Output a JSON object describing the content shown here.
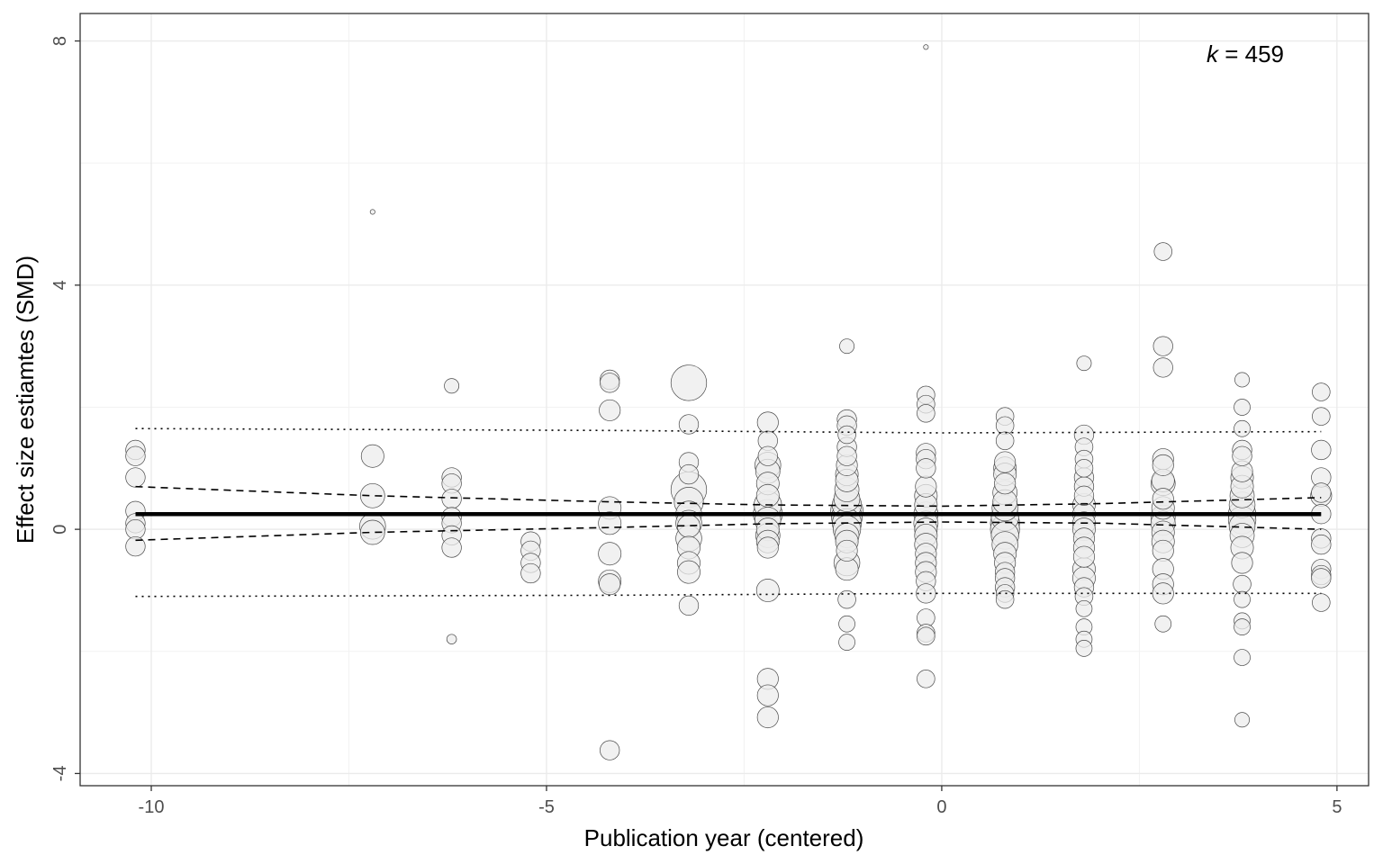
{
  "chart_data": {
    "type": "scatter",
    "xlabel": "Publication year (centered)",
    "ylabel": "Effect size estiamtes (SMD)",
    "xlim": [
      -10.9,
      5.4
    ],
    "ylim": [
      -4.2,
      8.45
    ],
    "x_ticks": [
      -10,
      -5,
      0,
      5
    ],
    "y_ticks": [
      -4,
      0,
      4,
      8
    ],
    "x_tick_labels": [
      "-10",
      "-5",
      "0",
      "5"
    ],
    "y_tick_labels": [
      "-4",
      "0",
      "4",
      "8"
    ],
    "grid": true,
    "annotation": {
      "var": "k",
      "op": " = ",
      "value": "459",
      "position": "top-right"
    },
    "fit_line": {
      "x": [
        -10.2,
        4.8
      ],
      "y": [
        0.25,
        0.25
      ]
    },
    "ci_upper": {
      "x": [
        -10.2,
        -7.2,
        -4.2,
        -2.2,
        0,
        2,
        4.8
      ],
      "y": [
        0.7,
        0.55,
        0.45,
        0.4,
        0.38,
        0.42,
        0.52
      ]
    },
    "ci_lower": {
      "x": [
        -10.2,
        -7.2,
        -4.2,
        -2.2,
        0,
        2,
        4.8
      ],
      "y": [
        -0.18,
        -0.05,
        0.03,
        0.09,
        0.12,
        0.1,
        0.0
      ]
    },
    "pi_upper": {
      "x": [
        -10.2,
        -4.2,
        0,
        4.8
      ],
      "y": [
        1.65,
        1.62,
        1.58,
        1.6
      ]
    },
    "pi_lower": {
      "x": [
        -10.2,
        -4.2,
        0,
        4.8
      ],
      "y": [
        -1.1,
        -1.08,
        -1.05,
        -1.05
      ]
    },
    "points": [
      {
        "x": -10.2,
        "y": 1.3,
        "w": 1.2
      },
      {
        "x": -10.2,
        "y": 1.2,
        "w": 1.2
      },
      {
        "x": -10.2,
        "y": 0.85,
        "w": 1.2
      },
      {
        "x": -10.2,
        "y": 0.3,
        "w": 1.2
      },
      {
        "x": -10.2,
        "y": 0.1,
        "w": 1.2
      },
      {
        "x": -10.2,
        "y": 0.0,
        "w": 1.2
      },
      {
        "x": -10.2,
        "y": -0.28,
        "w": 1.2
      },
      {
        "x": -7.2,
        "y": 5.2,
        "w": 0.3
      },
      {
        "x": -7.2,
        "y": 1.2,
        "w": 1.4
      },
      {
        "x": -7.2,
        "y": 0.55,
        "w": 1.5
      },
      {
        "x": -7.2,
        "y": 0.05,
        "w": 1.6
      },
      {
        "x": -7.2,
        "y": -0.05,
        "w": 1.5
      },
      {
        "x": -6.2,
        "y": 2.35,
        "w": 0.9
      },
      {
        "x": -6.2,
        "y": 0.85,
        "w": 1.2
      },
      {
        "x": -6.2,
        "y": 0.75,
        "w": 1.2
      },
      {
        "x": -6.2,
        "y": 0.5,
        "w": 1.2
      },
      {
        "x": -6.2,
        "y": 0.2,
        "w": 1.2
      },
      {
        "x": -6.2,
        "y": 0.1,
        "w": 1.2
      },
      {
        "x": -6.2,
        "y": -0.1,
        "w": 1.2
      },
      {
        "x": -6.2,
        "y": -0.3,
        "w": 1.2
      },
      {
        "x": -6.2,
        "y": -1.8,
        "w": 0.6
      },
      {
        "x": -5.2,
        "y": -0.2,
        "w": 1.2
      },
      {
        "x": -5.2,
        "y": -0.35,
        "w": 1.2
      },
      {
        "x": -5.2,
        "y": -0.55,
        "w": 1.2
      },
      {
        "x": -5.2,
        "y": -0.72,
        "w": 1.2
      },
      {
        "x": -4.2,
        "y": 2.45,
        "w": 1.2
      },
      {
        "x": -4.2,
        "y": 2.4,
        "w": 1.2
      },
      {
        "x": -4.2,
        "y": 1.95,
        "w": 1.3
      },
      {
        "x": -4.2,
        "y": 0.35,
        "w": 1.4
      },
      {
        "x": -4.2,
        "y": 0.1,
        "w": 1.4
      },
      {
        "x": -4.2,
        "y": -0.4,
        "w": 1.4
      },
      {
        "x": -4.2,
        "y": -0.85,
        "w": 1.4
      },
      {
        "x": -4.2,
        "y": -0.9,
        "w": 1.3
      },
      {
        "x": -4.2,
        "y": -3.62,
        "w": 1.2
      },
      {
        "x": -3.2,
        "y": 2.4,
        "w": 2.2
      },
      {
        "x": -3.2,
        "y": 1.72,
        "w": 1.2
      },
      {
        "x": -3.2,
        "y": 1.1,
        "w": 1.2
      },
      {
        "x": -3.2,
        "y": 0.9,
        "w": 1.2
      },
      {
        "x": -3.2,
        "y": 0.65,
        "w": 2.2
      },
      {
        "x": -3.2,
        "y": 0.45,
        "w": 1.8
      },
      {
        "x": -3.2,
        "y": 0.25,
        "w": 1.6
      },
      {
        "x": -3.2,
        "y": 0.1,
        "w": 1.6
      },
      {
        "x": -3.2,
        "y": 0.05,
        "w": 1.4
      },
      {
        "x": -3.2,
        "y": -0.15,
        "w": 1.6
      },
      {
        "x": -3.2,
        "y": -0.3,
        "w": 1.4
      },
      {
        "x": -3.2,
        "y": -0.55,
        "w": 1.4
      },
      {
        "x": -3.2,
        "y": -0.7,
        "w": 1.4
      },
      {
        "x": -3.2,
        "y": -1.25,
        "w": 1.2
      },
      {
        "x": -2.2,
        "y": 1.75,
        "w": 1.3
      },
      {
        "x": -2.2,
        "y": 1.45,
        "w": 1.2
      },
      {
        "x": -2.2,
        "y": 1.2,
        "w": 1.2
      },
      {
        "x": -2.2,
        "y": 1.05,
        "w": 1.6
      },
      {
        "x": -2.2,
        "y": 0.95,
        "w": 1.5
      },
      {
        "x": -2.2,
        "y": 0.75,
        "w": 1.4
      },
      {
        "x": -2.2,
        "y": 0.55,
        "w": 1.4
      },
      {
        "x": -2.2,
        "y": 0.4,
        "w": 1.7
      },
      {
        "x": -2.2,
        "y": 0.25,
        "w": 1.8
      },
      {
        "x": -2.2,
        "y": 0.15,
        "w": 1.6
      },
      {
        "x": -2.2,
        "y": 0.0,
        "w": 1.4
      },
      {
        "x": -2.2,
        "y": -0.1,
        "w": 1.5
      },
      {
        "x": -2.2,
        "y": -0.2,
        "w": 1.4
      },
      {
        "x": -2.2,
        "y": -0.3,
        "w": 1.3
      },
      {
        "x": -2.2,
        "y": -1.0,
        "w": 1.4
      },
      {
        "x": -2.2,
        "y": -2.45,
        "w": 1.3
      },
      {
        "x": -2.2,
        "y": -2.72,
        "w": 1.3
      },
      {
        "x": -2.2,
        "y": -3.08,
        "w": 1.3
      },
      {
        "x": -1.2,
        "y": 3.0,
        "w": 0.9
      },
      {
        "x": -1.2,
        "y": 1.8,
        "w": 1.2
      },
      {
        "x": -1.2,
        "y": 1.7,
        "w": 1.2
      },
      {
        "x": -1.2,
        "y": 1.55,
        "w": 1.1
      },
      {
        "x": -1.2,
        "y": 1.35,
        "w": 1.2
      },
      {
        "x": -1.2,
        "y": 1.2,
        "w": 1.2
      },
      {
        "x": -1.2,
        "y": 1.05,
        "w": 1.3
      },
      {
        "x": -1.2,
        "y": 0.9,
        "w": 1.4
      },
      {
        "x": -1.2,
        "y": 0.8,
        "w": 1.4
      },
      {
        "x": -1.2,
        "y": 0.65,
        "w": 1.5
      },
      {
        "x": -1.2,
        "y": 0.5,
        "w": 1.6
      },
      {
        "x": -1.2,
        "y": 0.4,
        "w": 1.8
      },
      {
        "x": -1.2,
        "y": 0.3,
        "w": 2.0
      },
      {
        "x": -1.2,
        "y": 0.2,
        "w": 1.9
      },
      {
        "x": -1.2,
        "y": 0.1,
        "w": 1.8
      },
      {
        "x": -1.2,
        "y": 0.0,
        "w": 1.7
      },
      {
        "x": -1.2,
        "y": -0.1,
        "w": 1.5
      },
      {
        "x": -1.2,
        "y": -0.2,
        "w": 1.4
      },
      {
        "x": -1.2,
        "y": -0.35,
        "w": 1.3
      },
      {
        "x": -1.2,
        "y": -0.55,
        "w": 1.6
      },
      {
        "x": -1.2,
        "y": -0.65,
        "w": 1.4
      },
      {
        "x": -1.2,
        "y": -1.15,
        "w": 1.1
      },
      {
        "x": -1.2,
        "y": -1.55,
        "w": 1.0
      },
      {
        "x": -1.2,
        "y": -1.85,
        "w": 1.0
      },
      {
        "x": -0.2,
        "y": 7.9,
        "w": 0.3
      },
      {
        "x": -0.2,
        "y": 2.2,
        "w": 1.1
      },
      {
        "x": -0.2,
        "y": 2.05,
        "w": 1.1
      },
      {
        "x": -0.2,
        "y": 1.9,
        "w": 1.1
      },
      {
        "x": -0.2,
        "y": 1.25,
        "w": 1.2
      },
      {
        "x": -0.2,
        "y": 1.15,
        "w": 1.2
      },
      {
        "x": -0.2,
        "y": 1.0,
        "w": 1.2
      },
      {
        "x": -0.2,
        "y": 0.7,
        "w": 1.3
      },
      {
        "x": -0.2,
        "y": 0.55,
        "w": 1.4
      },
      {
        "x": -0.2,
        "y": 0.4,
        "w": 1.4
      },
      {
        "x": -0.2,
        "y": 0.25,
        "w": 1.5
      },
      {
        "x": -0.2,
        "y": 0.1,
        "w": 1.5
      },
      {
        "x": -0.2,
        "y": 0.0,
        "w": 1.4
      },
      {
        "x": -0.2,
        "y": -0.1,
        "w": 1.4
      },
      {
        "x": -0.2,
        "y": -0.25,
        "w": 1.4
      },
      {
        "x": -0.2,
        "y": -0.4,
        "w": 1.3
      },
      {
        "x": -0.2,
        "y": -0.55,
        "w": 1.3
      },
      {
        "x": -0.2,
        "y": -0.7,
        "w": 1.3
      },
      {
        "x": -0.2,
        "y": -0.85,
        "w": 1.2
      },
      {
        "x": -0.2,
        "y": -1.05,
        "w": 1.2
      },
      {
        "x": -0.2,
        "y": -1.45,
        "w": 1.1
      },
      {
        "x": -0.2,
        "y": -1.7,
        "w": 1.1
      },
      {
        "x": -0.2,
        "y": -1.75,
        "w": 1.1
      },
      {
        "x": -0.2,
        "y": -2.45,
        "w": 1.1
      },
      {
        "x": 0.8,
        "y": 1.85,
        "w": 1.1
      },
      {
        "x": 0.8,
        "y": 1.7,
        "w": 1.1
      },
      {
        "x": 0.8,
        "y": 1.45,
        "w": 1.1
      },
      {
        "x": 0.8,
        "y": 1.1,
        "w": 1.3
      },
      {
        "x": 0.8,
        "y": 1.0,
        "w": 1.4
      },
      {
        "x": 0.8,
        "y": 0.9,
        "w": 1.4
      },
      {
        "x": 0.8,
        "y": 0.75,
        "w": 1.3
      },
      {
        "x": 0.8,
        "y": 0.6,
        "w": 1.5
      },
      {
        "x": 0.8,
        "y": 0.45,
        "w": 1.5
      },
      {
        "x": 0.8,
        "y": 0.35,
        "w": 1.6
      },
      {
        "x": 0.8,
        "y": 0.2,
        "w": 1.7
      },
      {
        "x": 0.8,
        "y": 0.1,
        "w": 1.8
      },
      {
        "x": 0.8,
        "y": 0.0,
        "w": 1.8
      },
      {
        "x": 0.8,
        "y": -0.1,
        "w": 1.7
      },
      {
        "x": 0.8,
        "y": -0.25,
        "w": 1.6
      },
      {
        "x": 0.8,
        "y": -0.4,
        "w": 1.4
      },
      {
        "x": 0.8,
        "y": -0.55,
        "w": 1.3
      },
      {
        "x": 0.8,
        "y": -0.7,
        "w": 1.2
      },
      {
        "x": 0.8,
        "y": -0.8,
        "w": 1.2
      },
      {
        "x": 0.8,
        "y": -0.95,
        "w": 1.2
      },
      {
        "x": 0.8,
        "y": -1.05,
        "w": 1.1
      },
      {
        "x": 0.8,
        "y": -1.15,
        "w": 1.1
      },
      {
        "x": 1.8,
        "y": 2.72,
        "w": 0.9
      },
      {
        "x": 1.8,
        "y": 1.55,
        "w": 1.2
      },
      {
        "x": 1.8,
        "y": 1.35,
        "w": 1.1
      },
      {
        "x": 1.8,
        "y": 1.15,
        "w": 1.1
      },
      {
        "x": 1.8,
        "y": 1.0,
        "w": 1.1
      },
      {
        "x": 1.8,
        "y": 0.85,
        "w": 1.2
      },
      {
        "x": 1.8,
        "y": 0.7,
        "w": 1.2
      },
      {
        "x": 1.8,
        "y": 0.55,
        "w": 1.2
      },
      {
        "x": 1.8,
        "y": 0.4,
        "w": 1.4
      },
      {
        "x": 1.8,
        "y": 0.25,
        "w": 1.4
      },
      {
        "x": 1.8,
        "y": 0.1,
        "w": 1.4
      },
      {
        "x": 1.8,
        "y": 0.0,
        "w": 1.4
      },
      {
        "x": 1.8,
        "y": -0.15,
        "w": 1.3
      },
      {
        "x": 1.8,
        "y": -0.3,
        "w": 1.3
      },
      {
        "x": 1.8,
        "y": -0.45,
        "w": 1.3
      },
      {
        "x": 1.8,
        "y": -0.65,
        "w": 1.4
      },
      {
        "x": 1.8,
        "y": -0.8,
        "w": 1.4
      },
      {
        "x": 1.8,
        "y": -0.95,
        "w": 1.2
      },
      {
        "x": 1.8,
        "y": -1.1,
        "w": 1.1
      },
      {
        "x": 1.8,
        "y": -1.3,
        "w": 1.0
      },
      {
        "x": 1.8,
        "y": -1.6,
        "w": 1.0
      },
      {
        "x": 1.8,
        "y": -1.8,
        "w": 1.0
      },
      {
        "x": 1.8,
        "y": -1.95,
        "w": 1.0
      },
      {
        "x": 2.8,
        "y": 4.55,
        "w": 1.1
      },
      {
        "x": 2.8,
        "y": 3.0,
        "w": 1.2
      },
      {
        "x": 2.8,
        "y": 2.65,
        "w": 1.2
      },
      {
        "x": 2.8,
        "y": 1.15,
        "w": 1.3
      },
      {
        "x": 2.8,
        "y": 1.05,
        "w": 1.3
      },
      {
        "x": 2.8,
        "y": 0.8,
        "w": 1.4
      },
      {
        "x": 2.8,
        "y": 0.75,
        "w": 1.5
      },
      {
        "x": 2.8,
        "y": 0.5,
        "w": 1.3
      },
      {
        "x": 2.8,
        "y": 0.35,
        "w": 1.4
      },
      {
        "x": 2.8,
        "y": 0.2,
        "w": 1.5
      },
      {
        "x": 2.8,
        "y": 0.1,
        "w": 1.5
      },
      {
        "x": 2.8,
        "y": -0.05,
        "w": 1.4
      },
      {
        "x": 2.8,
        "y": -0.2,
        "w": 1.4
      },
      {
        "x": 2.8,
        "y": -0.35,
        "w": 1.3
      },
      {
        "x": 2.8,
        "y": -0.65,
        "w": 1.3
      },
      {
        "x": 2.8,
        "y": -0.9,
        "w": 1.3
      },
      {
        "x": 2.8,
        "y": -1.05,
        "w": 1.3
      },
      {
        "x": 2.8,
        "y": -1.55,
        "w": 1.0
      },
      {
        "x": 3.8,
        "y": 2.45,
        "w": 0.9
      },
      {
        "x": 3.8,
        "y": 2.0,
        "w": 1.0
      },
      {
        "x": 3.8,
        "y": 1.65,
        "w": 1.0
      },
      {
        "x": 3.8,
        "y": 1.3,
        "w": 1.2
      },
      {
        "x": 3.8,
        "y": 1.2,
        "w": 1.2
      },
      {
        "x": 3.8,
        "y": 0.95,
        "w": 1.3
      },
      {
        "x": 3.8,
        "y": 0.85,
        "w": 1.4
      },
      {
        "x": 3.8,
        "y": 0.7,
        "w": 1.4
      },
      {
        "x": 3.8,
        "y": 0.55,
        "w": 1.5
      },
      {
        "x": 3.8,
        "y": 0.4,
        "w": 1.6
      },
      {
        "x": 3.8,
        "y": 0.25,
        "w": 1.7
      },
      {
        "x": 3.8,
        "y": 0.15,
        "w": 1.7
      },
      {
        "x": 3.8,
        "y": 0.05,
        "w": 1.6
      },
      {
        "x": 3.8,
        "y": -0.1,
        "w": 1.5
      },
      {
        "x": 3.8,
        "y": -0.3,
        "w": 1.4
      },
      {
        "x": 3.8,
        "y": -0.55,
        "w": 1.3
      },
      {
        "x": 3.8,
        "y": -0.9,
        "w": 1.1
      },
      {
        "x": 3.8,
        "y": -1.15,
        "w": 1.0
      },
      {
        "x": 3.8,
        "y": -1.5,
        "w": 1.0
      },
      {
        "x": 3.8,
        "y": -1.6,
        "w": 1.0
      },
      {
        "x": 3.8,
        "y": -2.1,
        "w": 1.0
      },
      {
        "x": 3.8,
        "y": -3.12,
        "w": 0.9
      },
      {
        "x": 4.8,
        "y": 2.25,
        "w": 1.1
      },
      {
        "x": 4.8,
        "y": 1.85,
        "w": 1.1
      },
      {
        "x": 4.8,
        "y": 1.3,
        "w": 1.2
      },
      {
        "x": 4.8,
        "y": 0.85,
        "w": 1.2
      },
      {
        "x": 4.8,
        "y": 0.6,
        "w": 1.2
      },
      {
        "x": 4.8,
        "y": 0.55,
        "w": 1.3
      },
      {
        "x": 4.8,
        "y": 0.25,
        "w": 1.2
      },
      {
        "x": 4.8,
        "y": -0.15,
        "w": 1.2
      },
      {
        "x": 4.8,
        "y": -0.25,
        "w": 1.2
      },
      {
        "x": 4.8,
        "y": -0.65,
        "w": 1.2
      },
      {
        "x": 4.8,
        "y": -0.75,
        "w": 1.2
      },
      {
        "x": 4.8,
        "y": -0.8,
        "w": 1.2
      },
      {
        "x": 4.8,
        "y": -1.2,
        "w": 1.1
      }
    ]
  }
}
